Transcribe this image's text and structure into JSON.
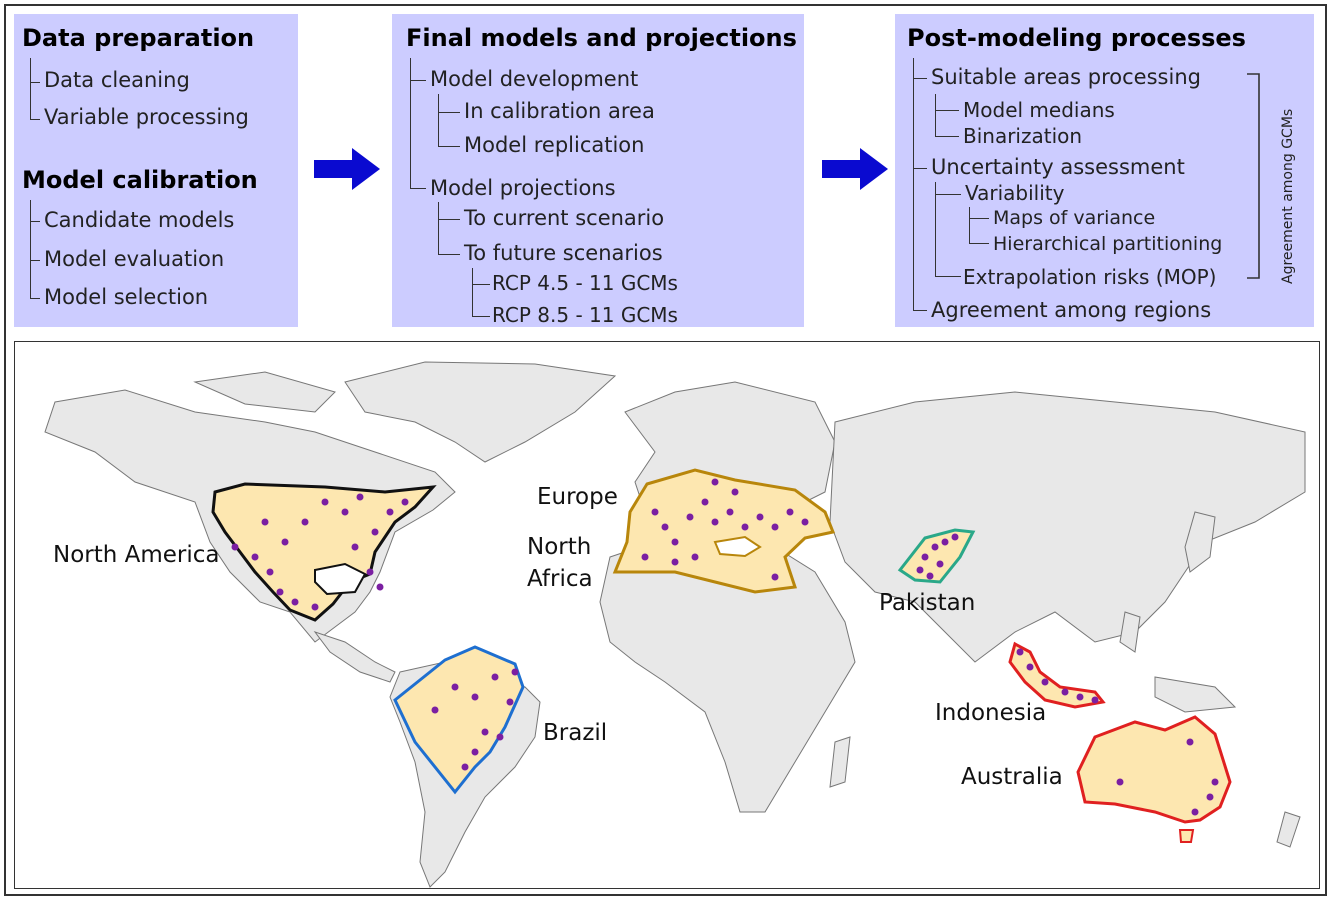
{
  "panel1": {
    "title_a": "Data preparation",
    "items_a": [
      "Data cleaning",
      "Variable processing"
    ],
    "title_b": "Model calibration",
    "items_b": [
      "Candidate models",
      "Model evaluation",
      "Model selection"
    ]
  },
  "panel2": {
    "title": "Final models and projections",
    "dev": "Model development",
    "dev_items": [
      "In calibration area",
      "Model replication"
    ],
    "proj": "Model projections",
    "proj_items": [
      "To current scenario",
      "To future scenarios"
    ],
    "future_items": [
      "RCP 4.5 - 11 GCMs",
      "RCP 8.5 - 11 GCMs"
    ]
  },
  "panel3": {
    "title": "Post-modeling processes",
    "suit": "Suitable areas processing",
    "suit_items": [
      "Model medians",
      "Binarization"
    ],
    "unc": "Uncertainty assessment",
    "var": "Variability",
    "var_items": [
      "Maps of variance",
      "Hierarchical partitioning"
    ],
    "extra": "Extrapolation risks (MOP)",
    "agree_regions": "Agreement among regions",
    "agree_gcms": "Agreement among GCMs"
  },
  "map": {
    "labels": {
      "north_america": "North America",
      "europe": "Europe",
      "north_africa_1": "North",
      "north_africa_2": "Africa",
      "pakistan": "Pakistan",
      "brazil": "Brazil",
      "indonesia": "Indonesia",
      "australia": "Australia"
    },
    "colors": {
      "land": "#e8e8e8",
      "region_fill": "#fde7b0",
      "points": "#7b1fa2",
      "north_america_border": "#111111",
      "europe_border": "#b8860b",
      "pakistan_border": "#2aa889",
      "brazil_border": "#1e6fd0",
      "indonesia_border": "#e02020",
      "australia_border": "#e02020"
    }
  },
  "colors": {
    "panel_bg": "#ccccff",
    "arrow": "#0a0ad0"
  }
}
